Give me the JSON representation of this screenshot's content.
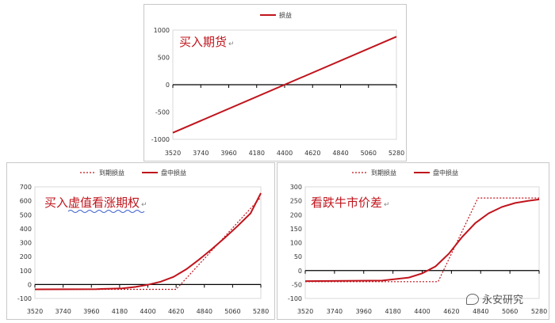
{
  "colors": {
    "line": "#c0141c",
    "axis": "#000000",
    "grid": "#d9d9d9",
    "annotation": "#c0141c"
  },
  "watermark": {
    "text": "永安研究",
    "icon": "wechat-bubble-icon"
  },
  "chart_data": [
    {
      "type": "line",
      "annotation": "买入期货",
      "annotation_mark": "↵",
      "x_ticks": [
        "3520",
        "3740",
        "3960",
        "4180",
        "4400",
        "4620",
        "4840",
        "5060",
        "5280"
      ],
      "xlim": [
        3520,
        5280
      ],
      "y_ticks": [
        "1000",
        "500",
        "0",
        "-500",
        "-1000"
      ],
      "ylim": [
        -1000,
        1000
      ],
      "legend_position": "top-center",
      "series": [
        {
          "name": "损益",
          "style": "solid",
          "x": [
            3520,
            5280
          ],
          "y": [
            -880,
            880
          ]
        }
      ]
    },
    {
      "type": "line",
      "annotation": "买入虚值看涨期权",
      "annotation_mark": "↵",
      "x_ticks": [
        "3520",
        "3740",
        "3960",
        "4180",
        "4400",
        "4620",
        "4840",
        "5060",
        "5280"
      ],
      "xlim": [
        3520,
        5280
      ],
      "y_ticks": [
        "700",
        "600",
        "500",
        "400",
        "300",
        "200",
        "100",
        "0",
        "-100"
      ],
      "ylim": [
        -100,
        700
      ],
      "legend_position": "top-center",
      "series": [
        {
          "name": "到期损益",
          "style": "dotted",
          "x": [
            3520,
            4620,
            5280
          ],
          "y": [
            -35,
            -35,
            625
          ]
        },
        {
          "name": "盘中损益",
          "style": "solid",
          "x": [
            3520,
            4000,
            4200,
            4300,
            4400,
            4500,
            4600,
            4700,
            4800,
            4900,
            5000,
            5100,
            5200,
            5280
          ],
          "y": [
            -35,
            -33,
            -28,
            -18,
            -2,
            20,
            55,
            110,
            180,
            255,
            335,
            420,
            510,
            655
          ]
        }
      ]
    },
    {
      "type": "line",
      "annotation": "看跌牛市价差",
      "annotation_mark": "↵",
      "x_ticks": [
        "3520",
        "3740",
        "3960",
        "4180",
        "4400",
        "4620",
        "4840",
        "5060",
        "5280"
      ],
      "xlim": [
        3520,
        5280
      ],
      "y_ticks": [
        "300",
        "250",
        "200",
        "150",
        "100",
        "50",
        "0",
        "-50",
        "-100"
      ],
      "ylim": [
        -100,
        300
      ],
      "legend_position": "top-center",
      "series": [
        {
          "name": "到期损益",
          "style": "dotted",
          "x": [
            3520,
            4520,
            4820,
            5280
          ],
          "y": [
            -40,
            -40,
            260,
            260
          ]
        },
        {
          "name": "盘中损益",
          "style": "solid",
          "x": [
            3520,
            4100,
            4300,
            4400,
            4500,
            4600,
            4700,
            4800,
            4900,
            5000,
            5100,
            5200,
            5280
          ],
          "y": [
            -38,
            -36,
            -25,
            -10,
            15,
            60,
            120,
            170,
            205,
            228,
            242,
            250,
            255
          ]
        }
      ]
    }
  ]
}
